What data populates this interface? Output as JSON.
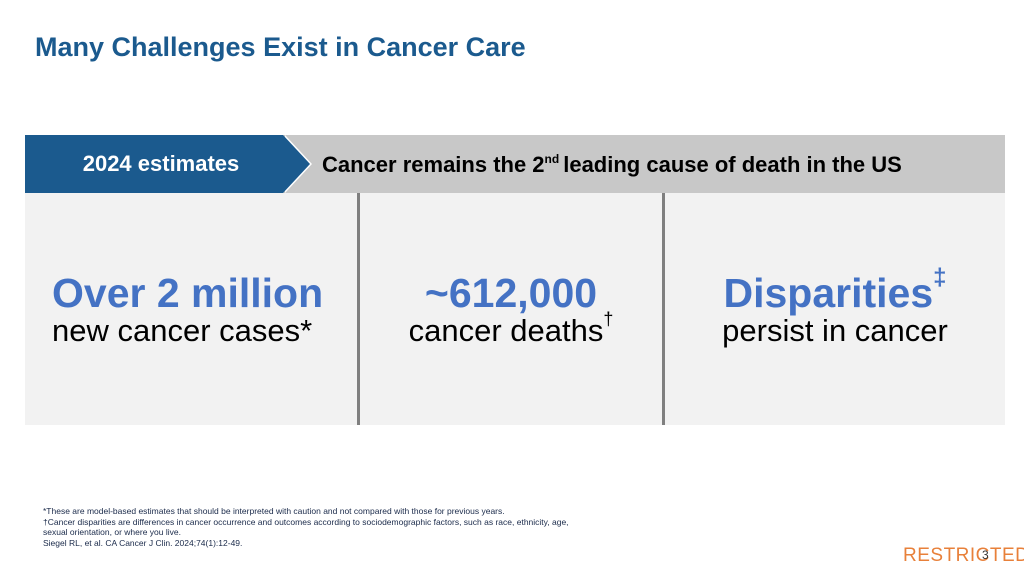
{
  "header": {
    "title": "Many Challenges Exist in Cancer Care"
  },
  "banner": {
    "label": "2024 estimates",
    "statement": {
      "before": "Cancer remains the 2",
      "superscript": "nd",
      "after": "leading cause of death in the US"
    }
  },
  "panels": [
    {
      "headline": "Over 2 million",
      "headline_mark": null,
      "caption": "new cancer cases*",
      "caption_mark": null
    },
    {
      "headline": "~612,000",
      "headline_mark": null,
      "caption": "cancer deaths",
      "caption_mark": "†"
    },
    {
      "headline": "Disparities",
      "headline_mark": "‡",
      "caption": "persist in cancer",
      "caption_mark": null
    }
  ],
  "footnotes": [
    "*These are model-based estimates that should be interpreted with caution and not compared with those for previous years.",
    "†Cancer disparities are differences in cancer occurrence and outcomes according to sociodemographic factors, such as race, ethnicity, age, sexual orientation, or where you live.",
    "Siegel RL, et al. CA Cancer J Clin. 2024;74(1):12-49."
  ],
  "footer": {
    "classification": "RESTRICTED",
    "page": "3"
  }
}
